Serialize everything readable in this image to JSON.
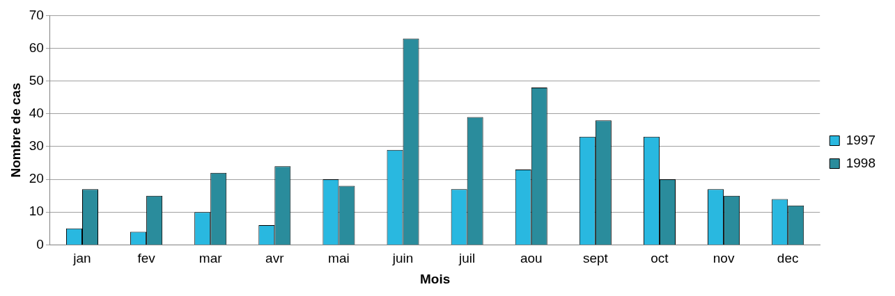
{
  "chart_data": {
    "type": "bar",
    "xlabel": "Mois",
    "ylabel": "Nombre de cas",
    "categories": [
      "jan",
      "fev",
      "mar",
      "avr",
      "mai",
      "juin",
      "juil",
      "aou",
      "sept",
      "oct",
      "nov",
      "dec"
    ],
    "series": [
      {
        "name": "1997",
        "color": "#29b8e0",
        "values": [
          5,
          4,
          10,
          6,
          20,
          29,
          17,
          23,
          33,
          33,
          17,
          14
        ]
      },
      {
        "name": "1998",
        "color": "#2a8c9c",
        "values": [
          17,
          15,
          22,
          24,
          18,
          63,
          39,
          48,
          38,
          20,
          15,
          12
        ]
      }
    ],
    "ylim": [
      0,
      70
    ],
    "yticks": [
      0,
      10,
      20,
      30,
      40,
      50,
      60,
      70
    ],
    "grid": "y",
    "legend": "right"
  }
}
